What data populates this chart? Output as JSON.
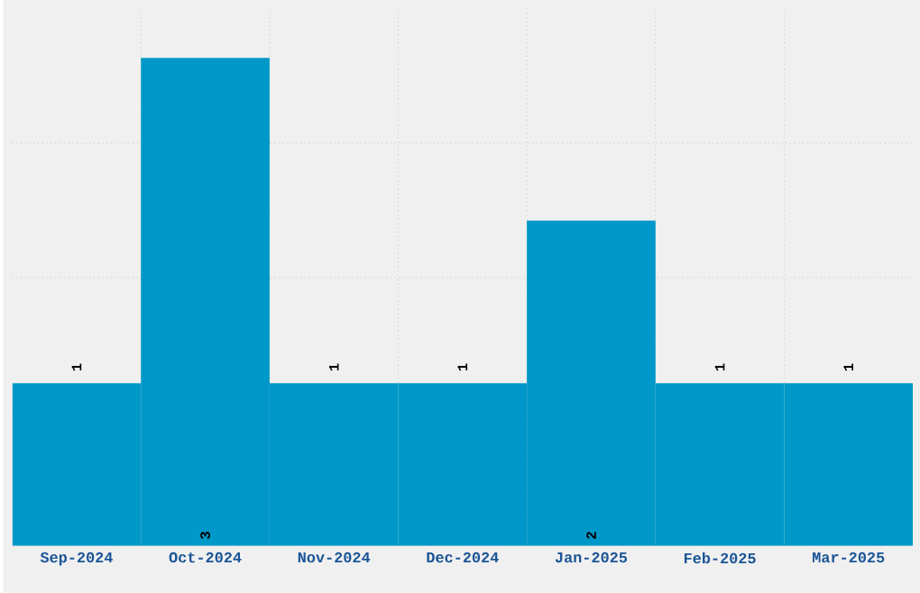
{
  "chart_data": {
    "type": "bar",
    "categories": [
      "Sep-2024",
      "Oct-2024",
      "Nov-2024",
      "Dec-2024",
      "Jan-2025",
      "Feb-2025",
      "Mar-2025"
    ],
    "values": [
      1,
      3,
      1,
      1,
      2,
      1,
      1
    ],
    "color": "#0098c8",
    "ylim": [
      0,
      3.3
    ],
    "yticks": [
      {
        "value": 0.825,
        "label": null
      },
      {
        "value": 1.65,
        "label": null
      },
      {
        "value": 2.475,
        "label": null
      }
    ],
    "grid": true,
    "tick_labels": "x",
    "data_labels": true
  }
}
